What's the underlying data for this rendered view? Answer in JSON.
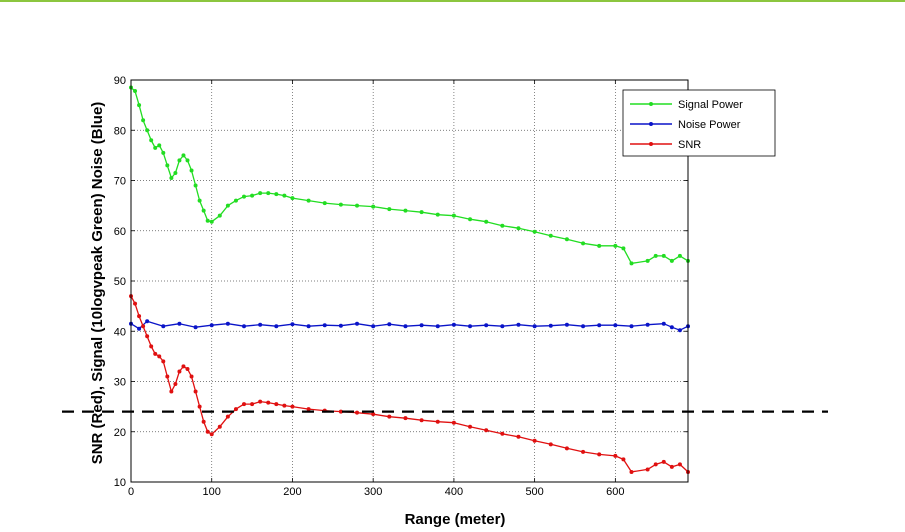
{
  "page": {
    "top_rule_color": "#8cc63f"
  },
  "chart_data": {
    "type": "line",
    "xlabel": "Range (meter)",
    "ylabel": "SNR (Red), Signal (10logvpeak Green) Noise (Blue)",
    "xlim": [
      0,
      690
    ],
    "ylim": [
      10,
      90
    ],
    "x_ticks": [
      "0",
      "100",
      "200",
      "300",
      "400",
      "500",
      "600"
    ],
    "y_ticks": [
      "10",
      "20",
      "30",
      "40",
      "50",
      "60",
      "70",
      "80",
      "90"
    ],
    "grid": true,
    "legend_position": "top-right",
    "threshold_line": {
      "y": 24,
      "style": "dashed",
      "color": "#000000"
    },
    "series": [
      {
        "name": "Signal Power",
        "color": "#22dd22",
        "x": [
          0,
          5,
          10,
          15,
          20,
          25,
          30,
          35,
          40,
          45,
          50,
          55,
          60,
          65,
          70,
          75,
          80,
          85,
          90,
          95,
          100,
          110,
          120,
          130,
          140,
          150,
          160,
          170,
          180,
          190,
          200,
          220,
          240,
          260,
          280,
          300,
          320,
          340,
          360,
          380,
          400,
          420,
          440,
          460,
          480,
          500,
          520,
          540,
          560,
          580,
          600,
          610,
          620,
          640,
          650,
          660,
          670,
          680,
          690
        ],
        "values": [
          88.5,
          87.8,
          85,
          82,
          80,
          78,
          76.5,
          77,
          75.5,
          73,
          70.5,
          71.5,
          74,
          75,
          74,
          72,
          69,
          66,
          64,
          62,
          61.8,
          63,
          65,
          66,
          66.8,
          67,
          67.5,
          67.5,
          67.3,
          67,
          66.5,
          66,
          65.5,
          65.2,
          65,
          64.8,
          64.3,
          64,
          63.7,
          63.2,
          63,
          62.3,
          61.8,
          61,
          60.5,
          59.8,
          59,
          58.3,
          57.5,
          57,
          57,
          56.5,
          53.5,
          54,
          55,
          55,
          54,
          55,
          54
        ]
      },
      {
        "name": "Noise Power",
        "color": "#0a14c8",
        "x": [
          0,
          10,
          20,
          40,
          60,
          80,
          100,
          120,
          140,
          160,
          180,
          200,
          220,
          240,
          260,
          280,
          300,
          320,
          340,
          360,
          380,
          400,
          420,
          440,
          460,
          480,
          500,
          520,
          540,
          560,
          580,
          600,
          620,
          640,
          660,
          670,
          680,
          690
        ],
        "values": [
          41.5,
          40.5,
          42,
          41,
          41.5,
          40.8,
          41.2,
          41.5,
          41,
          41.3,
          41,
          41.4,
          41,
          41.2,
          41.1,
          41.5,
          41,
          41.4,
          41,
          41.2,
          41,
          41.3,
          41,
          41.2,
          41,
          41.3,
          41,
          41.1,
          41.3,
          41,
          41.2,
          41.2,
          41,
          41.3,
          41.5,
          40.8,
          40.2,
          41
        ]
      },
      {
        "name": "SNR",
        "color": "#e01010",
        "x": [
          0,
          5,
          10,
          15,
          20,
          25,
          30,
          35,
          40,
          45,
          50,
          55,
          60,
          65,
          70,
          75,
          80,
          85,
          90,
          95,
          100,
          110,
          120,
          130,
          140,
          150,
          160,
          170,
          180,
          190,
          200,
          220,
          240,
          260,
          280,
          300,
          320,
          340,
          360,
          380,
          400,
          420,
          440,
          460,
          480,
          500,
          520,
          540,
          560,
          580,
          600,
          610,
          620,
          640,
          650,
          660,
          670,
          680,
          690
        ],
        "values": [
          47,
          45.5,
          43,
          41,
          39,
          37,
          35.5,
          35,
          34,
          31,
          28,
          29.5,
          32,
          33,
          32.5,
          31,
          28,
          25,
          22,
          20,
          19.5,
          21,
          23,
          24.5,
          25.5,
          25.5,
          26,
          25.8,
          25.5,
          25.2,
          25,
          24.5,
          24.2,
          24,
          23.8,
          23.5,
          23,
          22.7,
          22.3,
          22,
          21.8,
          21,
          20.3,
          19.6,
          19,
          18.2,
          17.5,
          16.7,
          16,
          15.5,
          15.2,
          14.5,
          12,
          12.5,
          13.5,
          14,
          13,
          13.5,
          12
        ]
      }
    ]
  }
}
